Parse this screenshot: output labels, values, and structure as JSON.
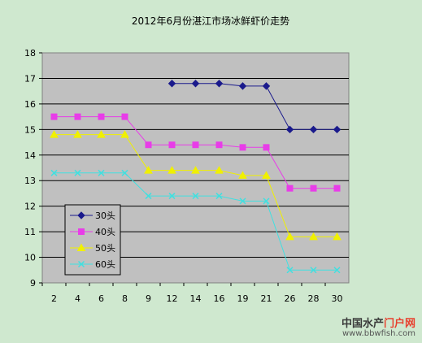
{
  "chart_data": {
    "type": "line",
    "title": "2012年6月份湛江市场冰鲜虾价走势",
    "xlabel": "",
    "ylabel": "",
    "categories": [
      "2",
      "4",
      "6",
      "8",
      "9",
      "12",
      "14",
      "16",
      "19",
      "21",
      "26",
      "28",
      "30"
    ],
    "ylim": [
      9,
      18
    ],
    "yticks": [
      9,
      10,
      11,
      12,
      13,
      14,
      15,
      16,
      17,
      18
    ],
    "grid": "horizontal",
    "legend": "left-middle",
    "series": [
      {
        "name": "30头",
        "color": "#1a1a8c",
        "marker": "diamond",
        "values": [
          null,
          null,
          null,
          null,
          null,
          16.8,
          16.8,
          16.8,
          16.7,
          16.7,
          15,
          15,
          15
        ]
      },
      {
        "name": "40头",
        "color": "#e83ce8",
        "marker": "square",
        "values": [
          15.5,
          15.5,
          15.5,
          15.5,
          14.4,
          14.4,
          14.4,
          14.4,
          14.3,
          14.3,
          12.7,
          12.7,
          12.7
        ]
      },
      {
        "name": "50头",
        "color": "#f0f000",
        "marker": "triangle",
        "values": [
          14.8,
          14.8,
          14.8,
          14.8,
          13.4,
          13.4,
          13.4,
          13.4,
          13.2,
          13.2,
          10.8,
          10.8,
          10.8
        ]
      },
      {
        "name": "60头",
        "color": "#40e0e0",
        "marker": "x",
        "values": [
          13.3,
          13.3,
          13.3,
          13.3,
          12.4,
          12.4,
          12.4,
          12.4,
          12.2,
          12.2,
          9.5,
          9.5,
          9.5
        ]
      }
    ]
  },
  "watermark": {
    "brand_a": "中国水产",
    "brand_b": "门户网",
    "url": "www.bbwfish.com"
  }
}
